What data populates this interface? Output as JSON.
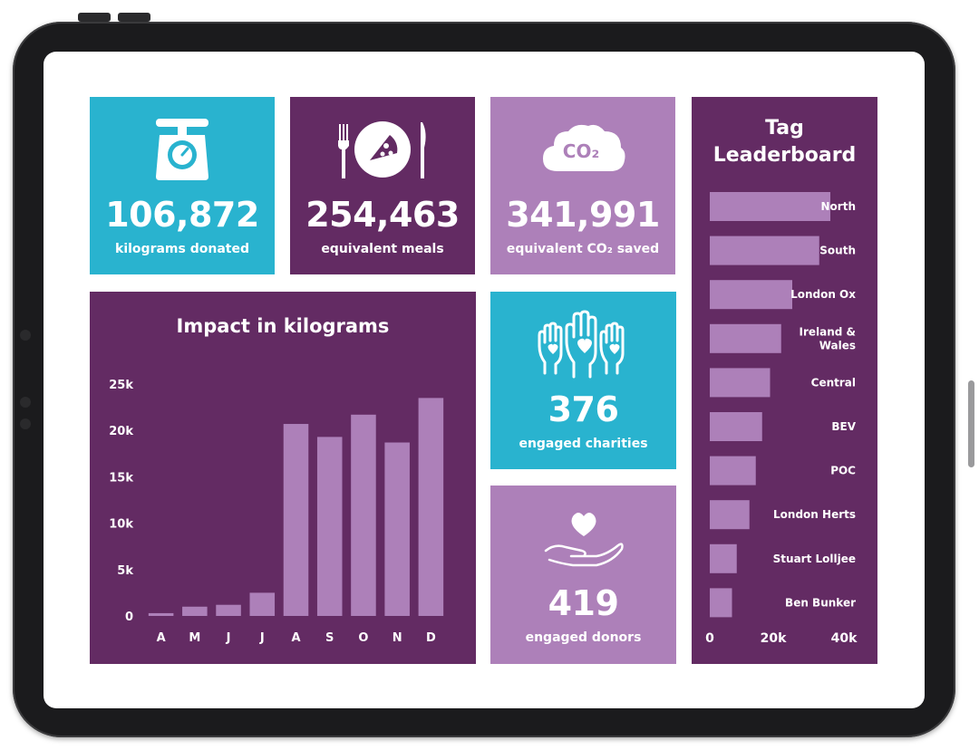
{
  "colors": {
    "teal": "#29b3cf",
    "plum": "#632b63",
    "lilac": "#ad80b9",
    "bar": "#ad80b9"
  },
  "stats": {
    "kilograms": {
      "value": "106,872",
      "caption": "kilograms donated",
      "icon": "scale-icon"
    },
    "meals": {
      "value": "254,463",
      "caption": "equivalent meals",
      "icon": "plate-cutlery-icon"
    },
    "co2": {
      "value": "341,991",
      "caption": "equivalent CO₂ saved",
      "icon": "co2-cloud-icon",
      "icon_text": "CO₂"
    },
    "charities": {
      "value": "376",
      "caption": "engaged charities",
      "icon": "raised-hands-icon"
    },
    "donors": {
      "value": "419",
      "caption": "engaged donors",
      "icon": "heart-hand-icon"
    }
  },
  "chart_data": [
    {
      "type": "bar",
      "title": "Impact in kilograms",
      "categories": [
        "A",
        "M",
        "J",
        "J",
        "A",
        "S",
        "O",
        "N",
        "D"
      ],
      "values": [
        300,
        1000,
        1200,
        2500,
        20700,
        19300,
        21700,
        18700,
        23500
      ],
      "yticks": [
        "0",
        "5k",
        "10k",
        "15k",
        "20k",
        "25k"
      ],
      "ylim": [
        0,
        25000
      ]
    },
    {
      "type": "bar",
      "orientation": "horizontal",
      "title_line1": "Tag",
      "title_line2": "Leaderboard",
      "categories": [
        "North",
        "South",
        "London Ox",
        "Ireland &\nWales",
        "Central",
        "BEV",
        "POC",
        "London Herts",
        "Stuart Lolljee",
        "Ben Bunker"
      ],
      "values": [
        38000,
        34500,
        26000,
        22500,
        19000,
        16500,
        14500,
        12500,
        8500,
        7000
      ],
      "xticks": [
        "0",
        "20k",
        "40k"
      ],
      "xlim": [
        0,
        40000
      ]
    }
  ]
}
